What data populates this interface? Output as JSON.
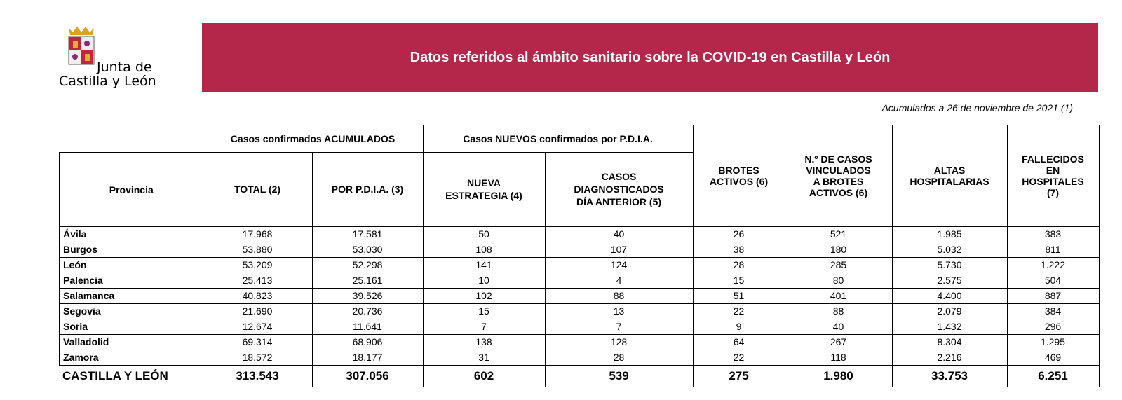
{
  "logo": {
    "line1": "Junta de",
    "line2": "Castilla y León"
  },
  "header": {
    "title": "Datos referidos al ámbito sanitario sobre la COVID-19 en Castilla y León"
  },
  "note": "Acumulados a 26 de noviembre de 2021 (1)",
  "table": {
    "groups": [
      "Casos confirmados ACUMULADOS",
      "Casos NUEVOS confirmados por P.D.I.A."
    ],
    "columns": [
      "Provincia",
      "TOTAL (2)",
      "POR P.D.I.A. (3)",
      "NUEVA\nESTRATEGIA (4)",
      "CASOS\nDIAGNOSTICADOS\nDÍA ANTERIOR (5)",
      "BROTES\nACTIVOS (6)",
      "N.º DE CASOS\nVINCULADOS\nA BROTES\nACTIVOS (6)",
      "ALTAS\nHOSPITALARIAS",
      "FALLECIDOS\nEN\nHOSPITALES\n(7)"
    ],
    "rows": [
      [
        "Ávila",
        "17.968",
        "17.581",
        "50",
        "40",
        "26",
        "521",
        "1.985",
        "383"
      ],
      [
        "Burgos",
        "53.880",
        "53.030",
        "108",
        "107",
        "38",
        "180",
        "5.032",
        "811"
      ],
      [
        "León",
        "53.209",
        "52.298",
        "141",
        "124",
        "28",
        "285",
        "5.730",
        "1.222"
      ],
      [
        "Palencia",
        "25.413",
        "25.161",
        "10",
        "4",
        "15",
        "80",
        "2.575",
        "504"
      ],
      [
        "Salamanca",
        "40.823",
        "39.526",
        "102",
        "88",
        "51",
        "401",
        "4.400",
        "887"
      ],
      [
        "Segovia",
        "21.690",
        "20.736",
        "15",
        "13",
        "22",
        "88",
        "2.079",
        "384"
      ],
      [
        "Soria",
        "12.674",
        "11.641",
        "7",
        "7",
        "9",
        "40",
        "1.432",
        "296"
      ],
      [
        "Valladolid",
        "69.314",
        "68.906",
        "138",
        "128",
        "64",
        "267",
        "8.304",
        "1.295"
      ],
      [
        "Zamora",
        "18.572",
        "18.177",
        "31",
        "28",
        "22",
        "118",
        "2.216",
        "469"
      ]
    ],
    "total": [
      "CASTILLA Y LEÓN",
      "313.543",
      "307.056",
      "602",
      "539",
      "275",
      "1.980",
      "33.753",
      "6.251"
    ]
  }
}
